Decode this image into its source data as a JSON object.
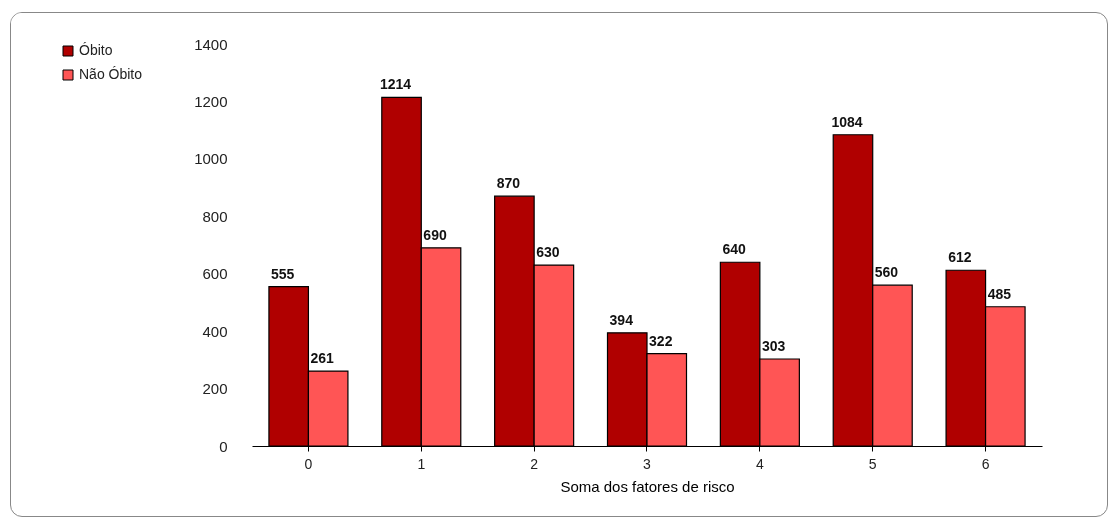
{
  "chart_data": {
    "type": "bar",
    "xlabel": "Soma dos fatores de risco",
    "categories": [
      "0",
      "1",
      "2",
      "3",
      "4",
      "5",
      "6"
    ],
    "series": [
      {
        "name": "Óbito",
        "color": "#b00000",
        "values": [
          555,
          1214,
          870,
          394,
          640,
          1084,
          612
        ]
      },
      {
        "name": "Não Óbito",
        "color": "#ff5555",
        "values": [
          261,
          690,
          630,
          322,
          303,
          560,
          485
        ]
      }
    ],
    "ylim": [
      0,
      1400
    ],
    "yticks": [
      0,
      200,
      400,
      600,
      800,
      1000,
      1200,
      1400
    ],
    "grid": false,
    "legend": "left",
    "data_labels": true
  }
}
